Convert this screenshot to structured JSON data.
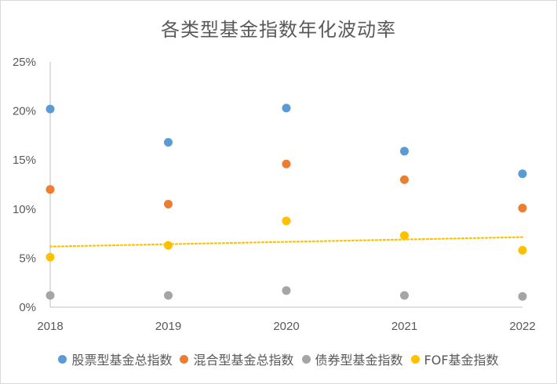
{
  "chart_data": {
    "type": "scatter",
    "title": "各类型基金指数年化波动率",
    "x": [
      "2018",
      "2019",
      "2020",
      "2021",
      "2022"
    ],
    "y_ticks": [
      "0%",
      "5%",
      "10%",
      "15%",
      "20%",
      "25%"
    ],
    "ylim": [
      0,
      25
    ],
    "y_unit": "%",
    "grid": false,
    "legend_position": "bottom",
    "series": [
      {
        "name": "股票型基金总指数",
        "color": "#5b9bd5",
        "values": [
          20.2,
          16.8,
          20.3,
          15.9,
          13.6
        ]
      },
      {
        "name": "混合型基金总指数",
        "color": "#ed7d31",
        "values": [
          12.0,
          10.5,
          14.6,
          13.0,
          10.1
        ]
      },
      {
        "name": "债券型基金指数",
        "color": "#a5a5a5",
        "values": [
          1.2,
          1.2,
          1.7,
          1.2,
          1.1
        ]
      },
      {
        "name": "FOF基金指数",
        "color": "#ffc000",
        "values": [
          5.1,
          6.3,
          8.8,
          7.3,
          5.8
        ]
      }
    ],
    "trendline": {
      "series": "FOF基金指数",
      "kind": "linear",
      "color": "#ffc000",
      "style": "dotted"
    }
  }
}
